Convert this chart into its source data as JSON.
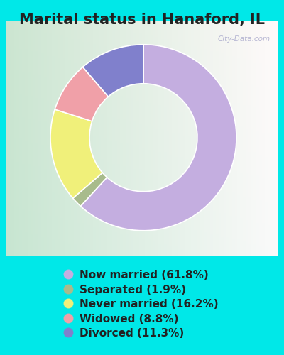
{
  "title": "Marital status in Hanaford, IL",
  "slices": [
    61.8,
    1.9,
    16.2,
    8.8,
    11.3
  ],
  "labels": [
    "Now married (61.8%)",
    "Separated (1.9%)",
    "Never married (16.2%)",
    "Widowed (8.8%)",
    "Divorced (11.3%)"
  ],
  "colors": [
    "#c4aee0",
    "#a8bb8c",
    "#f0f07a",
    "#f0a0a8",
    "#8080cc"
  ],
  "legend_colors": [
    "#c4aee0",
    "#a8bb8c",
    "#f0f07a",
    "#f0a0a8",
    "#8080cc"
  ],
  "bg_outer": "#00e8e8",
  "bg_chart_topleft": "#c8e8d0",
  "bg_chart_center": "#e8f4e8",
  "bg_chart_right": "#f0f8f8",
  "watermark": "City-Data.com",
  "title_fontsize": 15,
  "legend_fontsize": 11,
  "donut_width": 0.42,
  "start_angle": 90,
  "title_color": "#222222",
  "legend_text_color": "#222222"
}
